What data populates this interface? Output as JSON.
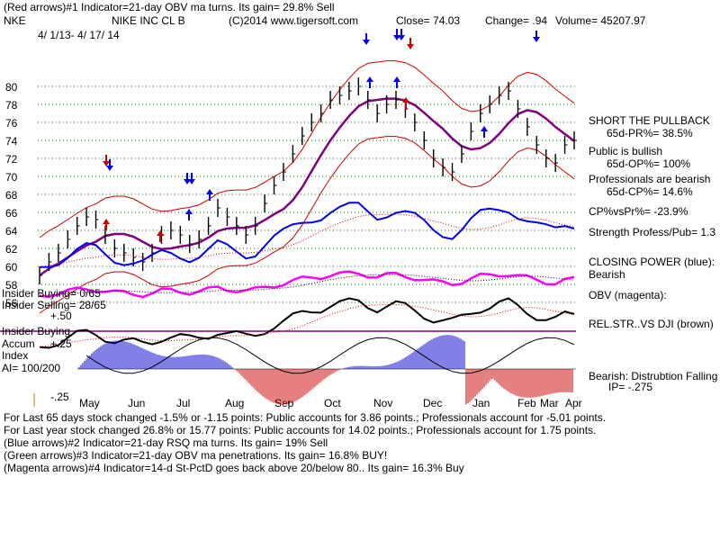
{
  "header": {
    "line1": "(Red arrows)#1 Indicator=21-day OBV ma turns. Its gain= 29.8% Sell",
    "ticker": "NKE",
    "name": "NIKE INC CL B",
    "copyright": "(C)2014 www.tigersoft.com",
    "close": "Close=  74.03",
    "change": "Change= .94",
    "volume": "Volume= 45207.97",
    "dates": "4/ 1/13-  4/ 17/ 14"
  },
  "side_notes": {
    "short": "SHORT THE PULLBACK",
    "pr": "65d-PR%= 38.5%",
    "public1": "Public is bullish",
    "public2": "65d-OP%= 100%",
    "prof1": "Professionals are bearish",
    "prof2": "65d-CP%= 14.6%",
    "cpvs": "CP%vsPr%= -23.9%",
    "strength": "Strength Profess/Pub= 1.3",
    "closing1": "CLOSING POWER (blue):",
    "closing2": "Bearish",
    "obv": "OBV (magenta):",
    "relstr": "REL.STR..VS DJI (brown)",
    "bearish": "Bearish: Distrubtion Falling",
    "ip": "IP= -.275"
  },
  "left_notes": {
    "ins_buy": "Insider Buying= 0/65",
    "ins_sell": "Insider Selling= 28/65",
    "plus50": "+.50",
    "ins_buy2": "Insider Buying",
    "accum": "Accum",
    "plus25": "+.25",
    "index": "Index",
    "ai": "AI= 100/200",
    "minus25": "-.25"
  },
  "footer": {
    "line1": "For Last 65 days stock changed -1.5% or -1.15 points:  Public accounts for  3.86 points.;  Professionals account for -5.01 points.",
    "line2": "For Last year stock changed  26.8% or 15.77 points:  Public accounts for  14.02 points.;  Professionals account for  1.75 points.",
    "line3": "(Blue arrows)#2 Indicator=21-day RSQ ma turns. Its gain= 19% Sell",
    "line4": "(Green arrows)#3 Indicator=21-day OBV ma penetrations. Its gain= 16.8% BUY!",
    "line5": "(Magenta arrows)#4 Indicator=14-d St-PctD goes back above 20/below 80.. Its gain= 16.3% Buy"
  },
  "colors": {
    "price": "#000000",
    "band": "#cc0000",
    "ma": "#800080",
    "closing_power": "#0000ee",
    "obv": "#ff00ff",
    "rel_strength": "#000000",
    "accum_pos": "#0000cc",
    "accum_neg": "#cc0000",
    "grid": "#008000"
  },
  "chart_data": {
    "type": "line",
    "title": "NIKE INC CL B",
    "ylim": [
      55,
      82
    ],
    "yticks": [
      56,
      58,
      60,
      62,
      64,
      66,
      68,
      70,
      72,
      74,
      76,
      78,
      80
    ],
    "xticks": [
      "May",
      "Jun",
      "Jul",
      "Aug",
      "Sep",
      "Oct",
      "Nov",
      "Dec",
      "Jan",
      "Feb",
      "Mar",
      "Apr"
    ],
    "series": [
      {
        "name": "Close",
        "values": [
          59.0,
          60.5,
          61.5,
          63.0,
          64.5,
          65.5,
          65.2,
          63.5,
          62.0,
          61.5,
          61.0,
          60.5,
          61.5,
          63.5,
          64.0,
          63.5,
          62.5,
          63.0,
          64.5,
          66.5,
          65.5,
          64.5,
          63.5,
          64.5,
          67.0,
          69.0,
          70.5,
          72.5,
          74.5,
          76.0,
          77.0,
          78.5,
          79.0,
          79.5,
          80.0,
          78.5,
          77.0,
          78.0,
          78.5,
          77.5,
          76.0,
          74.0,
          72.0,
          71.0,
          70.5,
          72.5,
          75.0,
          77.0,
          78.0,
          79.0,
          79.5,
          77.5,
          75.5,
          73.5,
          72.0,
          71.5,
          73.5,
          74.0
        ]
      }
    ]
  }
}
